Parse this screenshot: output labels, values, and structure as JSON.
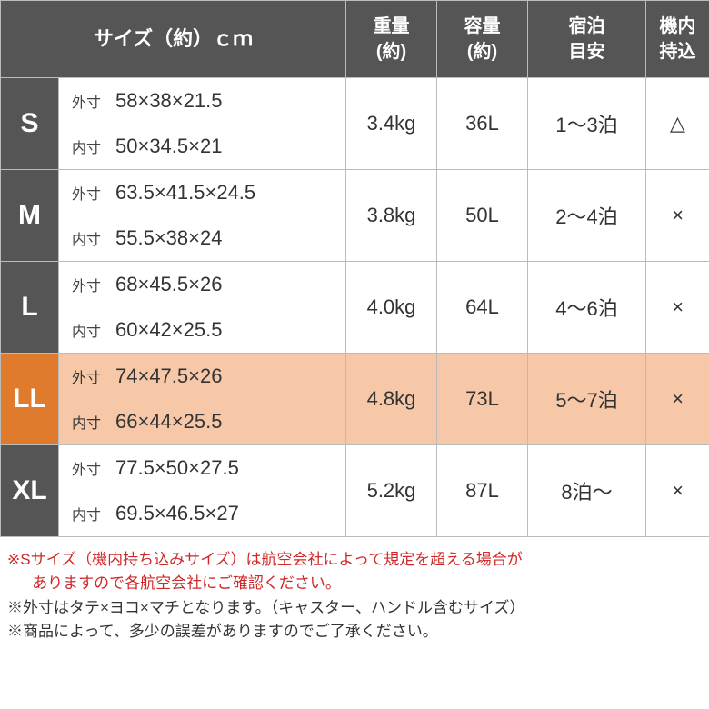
{
  "chart": {
    "type": "table",
    "header_bg": "#555555",
    "header_text_color": "#ffffff",
    "border_color": "#bbbbbb",
    "highlight_label_bg": "#e07b2e",
    "highlight_row_bg": "#f6c8a8",
    "body_text_color": "#333333",
    "headers": {
      "size": "サイズ（約）ｃｍ",
      "weight_l1": "重量",
      "weight_l2": "(約)",
      "capacity_l1": "容量",
      "capacity_l2": "(約)",
      "nights_l1": "宿泊",
      "nights_l2": "目安",
      "carryon_l1": "機内",
      "carryon_l2": "持込"
    },
    "dim_labels": {
      "outer": "外寸",
      "inner": "内寸"
    },
    "rows": [
      {
        "label": "S",
        "outer": "58×38×21.5",
        "inner": "50×34.5×21",
        "weight": "3.4kg",
        "capacity": "36L",
        "nights": "1～3泊",
        "carryon": "△",
        "highlight": false
      },
      {
        "label": "M",
        "outer": "63.5×41.5×24.5",
        "inner": "55.5×38×24",
        "weight": "3.8kg",
        "capacity": "50L",
        "nights": "2～4泊",
        "carryon": "×",
        "highlight": false
      },
      {
        "label": "L",
        "outer": "68×45.5×26",
        "inner": "60×42×25.5",
        "weight": "4.0kg",
        "capacity": "64L",
        "nights": "4～6泊",
        "carryon": "×",
        "highlight": false
      },
      {
        "label": "LL",
        "outer": "74×47.5×26",
        "inner": "66×44×25.5",
        "weight": "4.8kg",
        "capacity": "73L",
        "nights": "5～7泊",
        "carryon": "×",
        "highlight": true
      },
      {
        "label": "XL",
        "outer": "77.5×50×27.5",
        "inner": "69.5×46.5×27",
        "weight": "5.2kg",
        "capacity": "87L",
        "nights": "8泊～",
        "carryon": "×",
        "highlight": false
      }
    ]
  },
  "notes": {
    "red1": "※Sサイズ（機内持ち込みサイズ）は航空会社によって規定を超える場合が",
    "red2": "ありますので各航空会社にご確認ください。",
    "blk1": "※外寸はタテ×ヨコ×マチとなります。（キャスター、ハンドル含むサイズ）",
    "blk2": "※商品によって、多少の誤差がありますのでご了承ください。",
    "red_color": "#d02828",
    "black_color": "#333333"
  }
}
